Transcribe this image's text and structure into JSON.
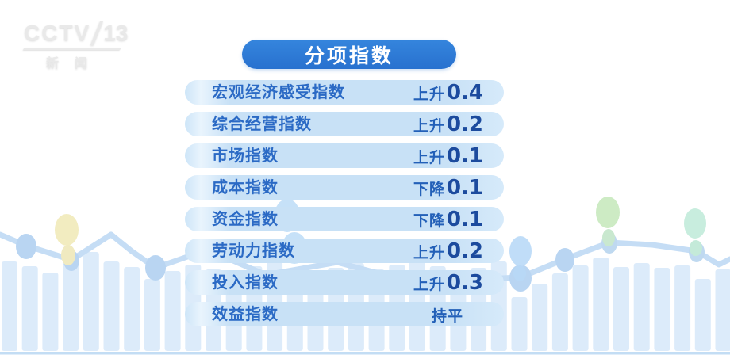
{
  "logo": {
    "channel": "CCTV",
    "number": "13",
    "subtitle": "新闻"
  },
  "header": {
    "title": "分项指数"
  },
  "colors": {
    "header_bg": "#2E7BD4",
    "row_bg": "#C8E1F6",
    "label_text": "#2B6AC5",
    "value_text": "#1C4B9E",
    "decor_line": "#C5DDF5",
    "decor_bar": "#DCEBFA",
    "balloon_yellow": "#F2ECC0",
    "balloon_blue": "#C0DDF8",
    "balloon_green": "#CDEBC4",
    "balloon_teal": "#C8EDDE"
  },
  "chart_data": {
    "type": "table",
    "title": "分项指数",
    "rows": [
      {
        "label": "宏观经济感受指数",
        "direction": "上升",
        "value": "0.4",
        "change": 0.4
      },
      {
        "label": "综合经营指数",
        "direction": "上升",
        "value": "0.2",
        "change": 0.2
      },
      {
        "label": "市场指数",
        "direction": "上升",
        "value": "0.1",
        "change": 0.1
      },
      {
        "label": "成本指数",
        "direction": "下降",
        "value": "0.1",
        "change": -0.1
      },
      {
        "label": "资金指数",
        "direction": "下降",
        "value": "0.1",
        "change": -0.1
      },
      {
        "label": "劳动力指数",
        "direction": "上升",
        "value": "0.2",
        "change": 0.2
      },
      {
        "label": "投入指数",
        "direction": "上升",
        "value": "0.3",
        "change": 0.3
      },
      {
        "label": "效益指数",
        "direction": "持平",
        "value": "",
        "change": 0
      }
    ]
  }
}
